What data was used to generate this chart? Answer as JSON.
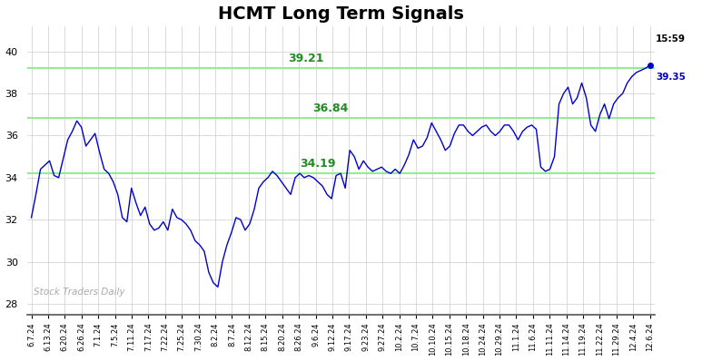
{
  "title": "HCMT Long Term Signals",
  "title_fontsize": 14,
  "title_fontweight": "bold",
  "ylabel_values": [
    28,
    30,
    32,
    34,
    36,
    38,
    40
  ],
  "ylim": [
    27.5,
    41.2
  ],
  "hlines": [
    34.19,
    36.84,
    39.21
  ],
  "hline_color": "#90EE90",
  "hline_labels": [
    "34.19",
    "36.84",
    "39.21"
  ],
  "hline_label_color": "#228B22",
  "last_price": 39.35,
  "last_time": "15:59",
  "last_price_color": "#0000CD",
  "last_time_color": "#000000",
  "line_color": "#0000CD",
  "watermark_text": "Stock Traders Daily",
  "watermark_color": "#aaaaaa",
  "background_color": "#ffffff",
  "grid_color": "#cccccc",
  "tick_labels": [
    "6.7.24",
    "6.13.24",
    "6.20.24",
    "6.26.24",
    "7.1.24",
    "7.5.24",
    "7.11.24",
    "7.17.24",
    "7.22.24",
    "7.25.24",
    "7.30.24",
    "8.2.24",
    "8.7.24",
    "8.12.24",
    "8.15.24",
    "8.20.24",
    "8.26.24",
    "9.6.24",
    "9.12.24",
    "9.17.24",
    "9.23.24",
    "9.27.24",
    "10.2.24",
    "10.7.24",
    "10.10.24",
    "10.15.24",
    "10.18.24",
    "10.24.24",
    "10.29.24",
    "11.1.24",
    "11.6.24",
    "11.11.24",
    "11.14.24",
    "11.19.24",
    "11.22.24",
    "11.29.24",
    "12.4.24",
    "12.6.24"
  ],
  "prices": [
    32.1,
    33.2,
    34.4,
    34.6,
    34.8,
    34.1,
    34.0,
    34.9,
    35.8,
    36.2,
    36.7,
    36.4,
    35.5,
    35.8,
    36.1,
    35.2,
    34.4,
    34.2,
    33.8,
    33.2,
    32.1,
    31.9,
    33.5,
    32.8,
    32.2,
    32.6,
    31.8,
    31.5,
    31.6,
    31.9,
    31.5,
    32.5,
    32.1,
    32.0,
    31.8,
    31.5,
    31.0,
    30.8,
    30.5,
    29.5,
    29.0,
    28.8,
    30.0,
    30.8,
    31.4,
    32.1,
    32.0,
    31.5,
    31.8,
    32.5,
    33.5,
    33.8,
    34.0,
    34.3,
    34.1,
    33.8,
    33.5,
    33.2,
    34.0,
    34.2,
    34.0,
    34.1,
    34.0,
    33.8,
    33.6,
    33.2,
    33.0,
    34.1,
    34.2,
    33.5,
    35.3,
    35.0,
    34.4,
    34.8,
    34.5,
    34.3,
    34.4,
    34.5,
    34.3,
    34.2,
    34.4,
    34.2,
    34.6,
    35.1,
    35.8,
    35.4,
    35.5,
    35.9,
    36.6,
    36.2,
    35.8,
    35.3,
    35.5,
    36.1,
    36.5,
    36.5,
    36.2,
    36.0,
    36.2,
    36.4,
    36.5,
    36.2,
    36.0,
    36.2,
    36.5,
    36.5,
    36.2,
    35.8,
    36.2,
    36.4,
    36.5,
    36.3,
    34.5,
    34.3,
    34.4,
    35.0,
    37.5,
    38.0,
    38.3,
    37.5,
    37.8,
    38.5,
    37.8,
    36.5,
    36.2,
    37.0,
    37.5,
    36.8,
    37.5,
    37.8,
    38.0,
    38.5,
    38.8,
    39.0,
    39.1,
    39.2,
    39.35
  ]
}
